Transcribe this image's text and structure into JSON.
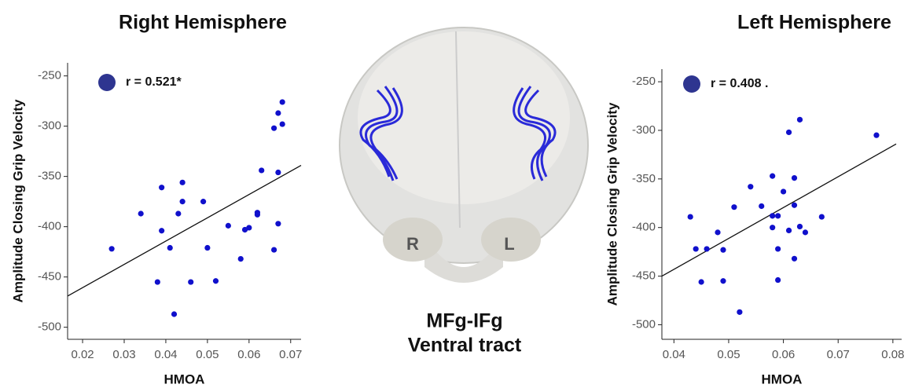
{
  "chart_data": [
    {
      "type": "scatter",
      "title": "Right Hemisphere",
      "xlabel": "HMOA",
      "ylabel": "Amplitude Closing Grip Velocity",
      "annotation": "r = 0.521*",
      "marker_color": "#2e3590",
      "x": [
        0.027,
        0.034,
        0.039,
        0.039,
        0.038,
        0.044,
        0.044,
        0.043,
        0.041,
        0.042,
        0.046,
        0.049,
        0.05,
        0.052,
        0.055,
        0.058,
        0.059,
        0.06,
        0.062,
        0.062,
        0.063,
        0.066,
        0.067,
        0.067,
        0.066,
        0.068,
        0.067,
        0.068
      ],
      "values": [
        -422,
        -387,
        -361,
        -404,
        -455,
        -356,
        -375,
        -387,
        -421,
        -487,
        -455,
        -375,
        -421,
        -454,
        -399,
        -432,
        -403,
        -401,
        -388,
        -386,
        -344,
        -423,
        -397,
        -346,
        -302,
        -298,
        -287,
        -276
      ],
      "color": "#1010cc",
      "fit": {
        "x": [
          0.0164,
          0.0725
        ],
        "values": [
          -469,
          -339
        ]
      },
      "xlim": [
        0.0164,
        0.0725
      ],
      "ylim": [
        -512,
        -237
      ],
      "xticks": [
        0.02,
        0.03,
        0.04,
        0.05,
        0.06,
        0.07
      ],
      "yticks": [
        -250,
        -300,
        -350,
        -400,
        -450,
        -500
      ]
    },
    {
      "type": "scatter",
      "title": "Left Hemisphere",
      "xlabel": "HMOA",
      "ylabel": "Amplitude Closing Grip Velocity",
      "annotation": "r = 0.408 .",
      "marker_color": "#2e3590",
      "x": [
        0.043,
        0.044,
        0.046,
        0.045,
        0.048,
        0.049,
        0.049,
        0.051,
        0.054,
        0.056,
        0.052,
        0.058,
        0.058,
        0.059,
        0.058,
        0.06,
        0.059,
        0.059,
        0.061,
        0.061,
        0.062,
        0.062,
        0.063,
        0.062,
        0.063,
        0.064,
        0.067,
        0.077
      ],
      "values": [
        -389,
        -422,
        -422,
        -456,
        -405,
        -423,
        -455,
        -379,
        -358,
        -378,
        -487,
        -347,
        -388,
        -388,
        -400,
        -363,
        -422,
        -454,
        -302,
        -403,
        -377,
        -349,
        -289,
        -432,
        -399,
        -405,
        -389,
        -305
      ],
      "color": "#1010cc",
      "fit": {
        "x": [
          0.0378,
          0.0806
        ],
        "values": [
          -450,
          -314
        ]
      },
      "xlim": [
        0.0378,
        0.0816
      ],
      "ylim": [
        -515,
        -237
      ],
      "xticks": [
        0.04,
        0.05,
        0.06,
        0.07,
        0.08
      ],
      "yticks": [
        -250,
        -300,
        -350,
        -400,
        -450,
        -500
      ]
    }
  ],
  "brain": {
    "right_label": "R",
    "left_label": "L",
    "caption": [
      "MFg-IFg",
      "Ventral tract"
    ]
  }
}
